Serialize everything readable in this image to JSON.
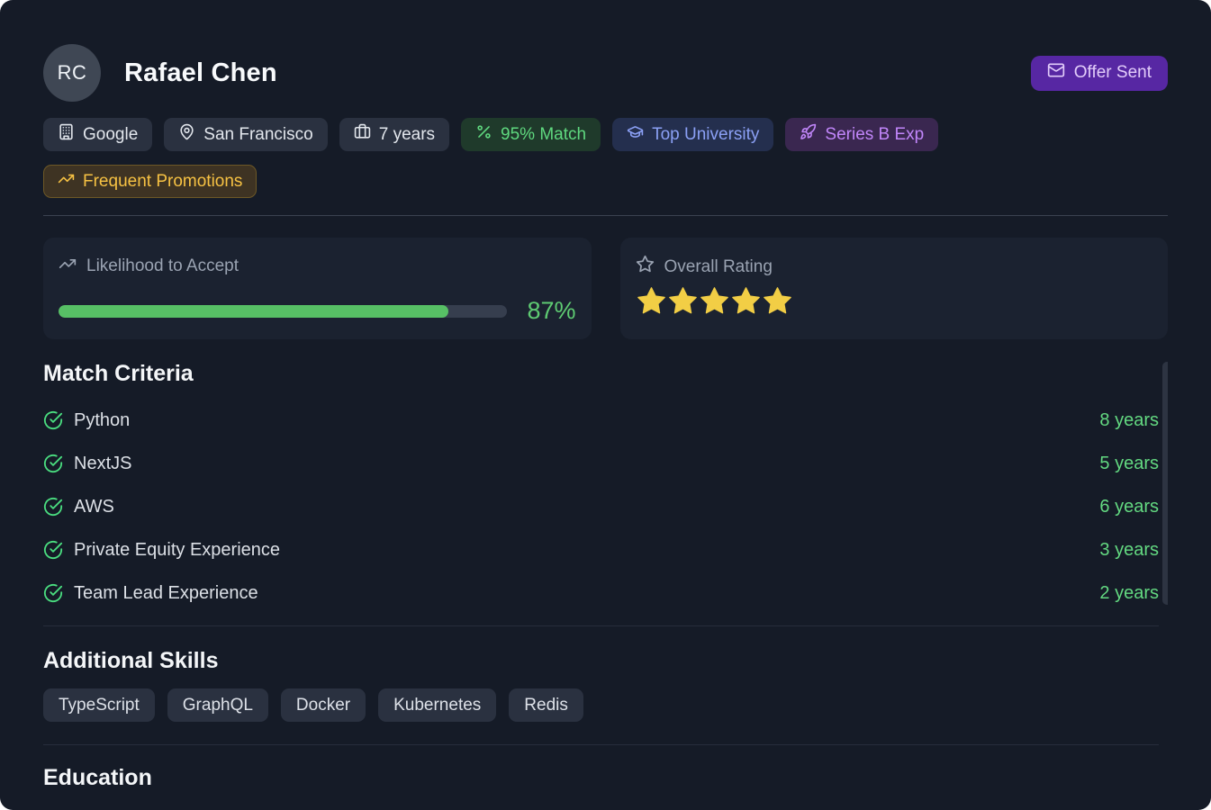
{
  "header": {
    "avatar_initials": "RC",
    "name": "Rafael Chen",
    "status_badge": "Offer Sent"
  },
  "badges": [
    {
      "label": "Google",
      "icon": "building-icon",
      "variant": "neutral"
    },
    {
      "label": "San Francisco",
      "icon": "map-pin-icon",
      "variant": "neutral"
    },
    {
      "label": "7 years",
      "icon": "briefcase-icon",
      "variant": "neutral"
    },
    {
      "label": "95% Match",
      "icon": "percent-icon",
      "variant": "green"
    },
    {
      "label": "Top University",
      "icon": "graduation-cap-icon",
      "variant": "blue"
    },
    {
      "label": "Series B Exp",
      "icon": "rocket-icon",
      "variant": "purple"
    },
    {
      "label": "Frequent Promotions",
      "icon": "trending-up-icon",
      "variant": "amber"
    }
  ],
  "stats": {
    "likelihood": {
      "label": "Likelihood to Accept",
      "value_pct": 87,
      "value_label": "87%"
    },
    "rating": {
      "label": "Overall Rating",
      "stars": 5,
      "max_stars": 5
    }
  },
  "match_criteria": {
    "title": "Match Criteria",
    "items": [
      {
        "skill": "Python",
        "years": "8 years"
      },
      {
        "skill": "NextJS",
        "years": "5 years"
      },
      {
        "skill": "AWS",
        "years": "6 years"
      },
      {
        "skill": "Private Equity Experience",
        "years": "3 years"
      },
      {
        "skill": "Team Lead Experience",
        "years": "2 years"
      }
    ]
  },
  "additional_skills": {
    "title": "Additional Skills",
    "skills": [
      "TypeScript",
      "GraphQL",
      "Docker",
      "Kubernetes",
      "Redis"
    ]
  },
  "education": {
    "title": "Education"
  },
  "colors": {
    "card_bg": "#151b27",
    "accent_green": "#57c065",
    "accent_yellow": "#f2ce45",
    "badge_purple": "#5727a3",
    "chip_neutral_bg": "#2a3140"
  }
}
